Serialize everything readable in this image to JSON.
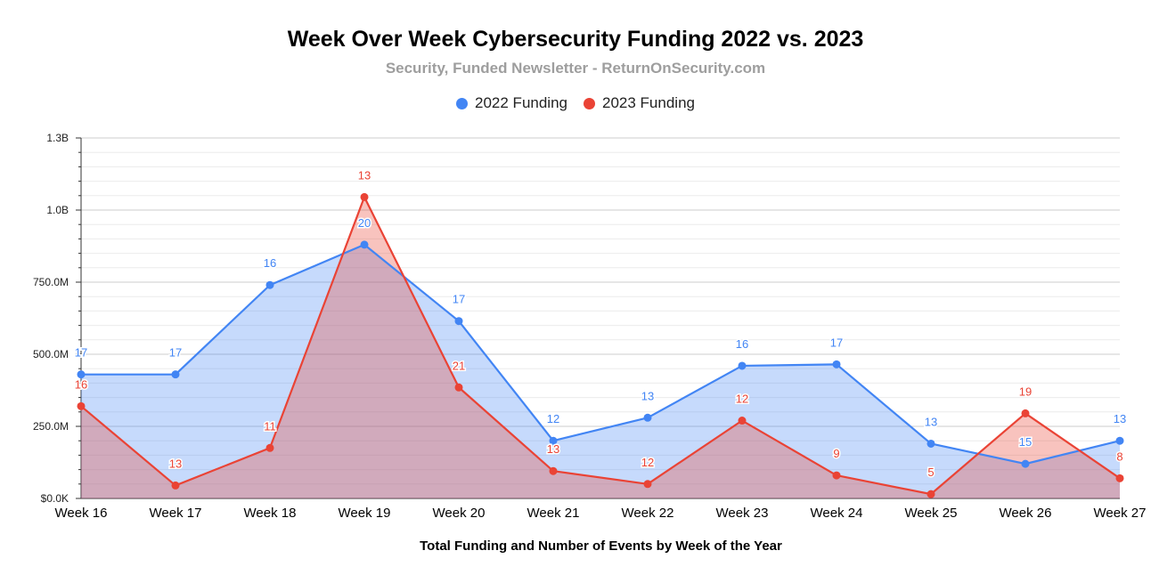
{
  "chart_data": {
    "type": "area",
    "title": "Week Over Week Cybersecurity Funding 2022 vs. 2023",
    "subtitle": "Security, Funded Newsletter - ReturnOnSecurity.com",
    "xlabel": "Total Funding and Number of Events by Week of the Year",
    "ylabel": "",
    "ylim": [
      0,
      1250000000
    ],
    "y_ticks": [
      {
        "value": 0,
        "label": "$0.0K"
      },
      {
        "value": 250000000,
        "label": "250.0M"
      },
      {
        "value": 500000000,
        "label": "500.0M"
      },
      {
        "value": 750000000,
        "label": "750.0M"
      },
      {
        "value": 1000000000,
        "label": "1.0B"
      },
      {
        "value": 1250000000,
        "label": "1.3B"
      }
    ],
    "grid": true,
    "legend_position": "top",
    "categories": [
      "Week 16",
      "Week 17",
      "Week 18",
      "Week 19",
      "Week 20",
      "Week 21",
      "Week 22",
      "Week 23",
      "Week 24",
      "Week 25",
      "Week 26",
      "Week 27"
    ],
    "series": [
      {
        "name": "2022 Funding",
        "color": "#4285f4",
        "fill": "rgba(66,133,244,0.30)",
        "values": [
          430000000,
          430000000,
          740000000,
          880000000,
          615000000,
          200000000,
          280000000,
          460000000,
          465000000,
          190000000,
          120000000,
          200000000
        ],
        "labels": [
          "17",
          "17",
          "16",
          "20",
          "17",
          "12",
          "13",
          "16",
          "17",
          "13",
          "15",
          "13"
        ]
      },
      {
        "name": "2023 Funding",
        "color": "#ea4335",
        "fill": "rgba(234,67,53,0.32)",
        "values": [
          320000000,
          45000000,
          175000000,
          1045000000,
          385000000,
          95000000,
          50000000,
          270000000,
          80000000,
          15000000,
          295000000,
          70000000
        ],
        "labels": [
          "16",
          "13",
          "11",
          "13",
          "21",
          "13",
          "12",
          "12",
          "9",
          "5",
          "19",
          "8"
        ]
      }
    ]
  }
}
